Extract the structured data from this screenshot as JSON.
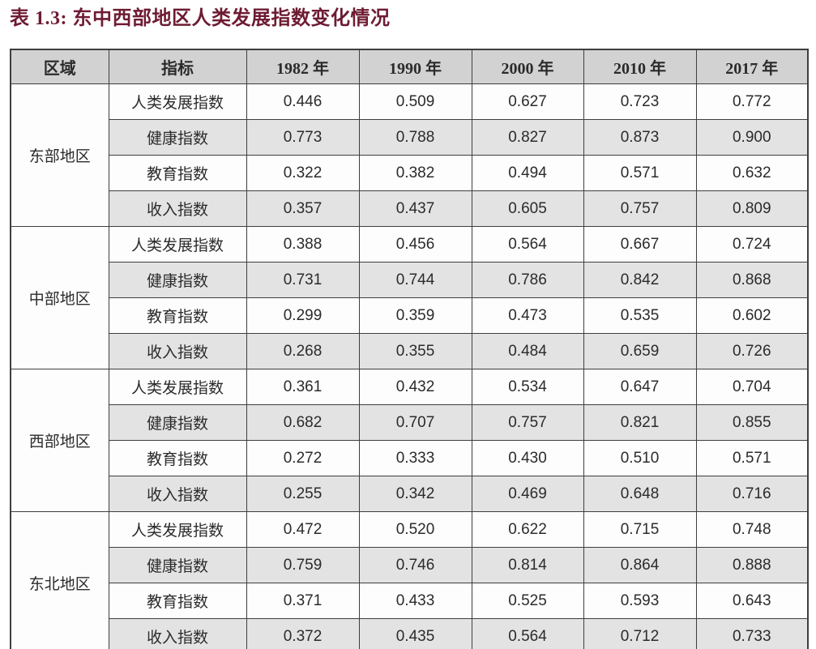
{
  "page": {
    "title": "表 1.3: 东中西部地区人类发展指数变化情况"
  },
  "colors": {
    "title_text": "#6e1c33",
    "header_bg": "#d2d2d2",
    "stripe_bg": "#e3e3e3",
    "row_bg": "#fdfdfd",
    "border": "#3e3e3e",
    "body_text": "#2b2b2b"
  },
  "table": {
    "headers": [
      "区域",
      "指标",
      "1982 年",
      "1990 年",
      "2000 年",
      "2010 年",
      "2017 年"
    ],
    "groups": [
      {
        "region": "东部地区",
        "rows": [
          {
            "indicator": "人类发展指数",
            "values": [
              "0.446",
              "0.509",
              "0.627",
              "0.723",
              "0.772"
            ]
          },
          {
            "indicator": "健康指数",
            "values": [
              "0.773",
              "0.788",
              "0.827",
              "0.873",
              "0.900"
            ]
          },
          {
            "indicator": "教育指数",
            "values": [
              "0.322",
              "0.382",
              "0.494",
              "0.571",
              "0.632"
            ]
          },
          {
            "indicator": "收入指数",
            "values": [
              "0.357",
              "0.437",
              "0.605",
              "0.757",
              "0.809"
            ]
          }
        ]
      },
      {
        "region": "中部地区",
        "rows": [
          {
            "indicator": "人类发展指数",
            "values": [
              "0.388",
              "0.456",
              "0.564",
              "0.667",
              "0.724"
            ]
          },
          {
            "indicator": "健康指数",
            "values": [
              "0.731",
              "0.744",
              "0.786",
              "0.842",
              "0.868"
            ]
          },
          {
            "indicator": "教育指数",
            "values": [
              "0.299",
              "0.359",
              "0.473",
              "0.535",
              "0.602"
            ]
          },
          {
            "indicator": "收入指数",
            "values": [
              "0.268",
              "0.355",
              "0.484",
              "0.659",
              "0.726"
            ]
          }
        ]
      },
      {
        "region": "西部地区",
        "rows": [
          {
            "indicator": "人类发展指数",
            "values": [
              "0.361",
              "0.432",
              "0.534",
              "0.647",
              "0.704"
            ]
          },
          {
            "indicator": "健康指数",
            "values": [
              "0.682",
              "0.707",
              "0.757",
              "0.821",
              "0.855"
            ]
          },
          {
            "indicator": "教育指数",
            "values": [
              "0.272",
              "0.333",
              "0.430",
              "0.510",
              "0.571"
            ]
          },
          {
            "indicator": "收入指数",
            "values": [
              "0.255",
              "0.342",
              "0.469",
              "0.648",
              "0.716"
            ]
          }
        ]
      },
      {
        "region": "东北地区",
        "rows": [
          {
            "indicator": "人类发展指数",
            "values": [
              "0.472",
              "0.520",
              "0.622",
              "0.715",
              "0.748"
            ]
          },
          {
            "indicator": "健康指数",
            "values": [
              "0.759",
              "0.746",
              "0.814",
              "0.864",
              "0.888"
            ]
          },
          {
            "indicator": "教育指数",
            "values": [
              "0.371",
              "0.433",
              "0.525",
              "0.593",
              "0.643"
            ]
          },
          {
            "indicator": "收入指数",
            "values": [
              "0.372",
              "0.435",
              "0.564",
              "0.712",
              "0.733"
            ]
          }
        ]
      }
    ]
  }
}
